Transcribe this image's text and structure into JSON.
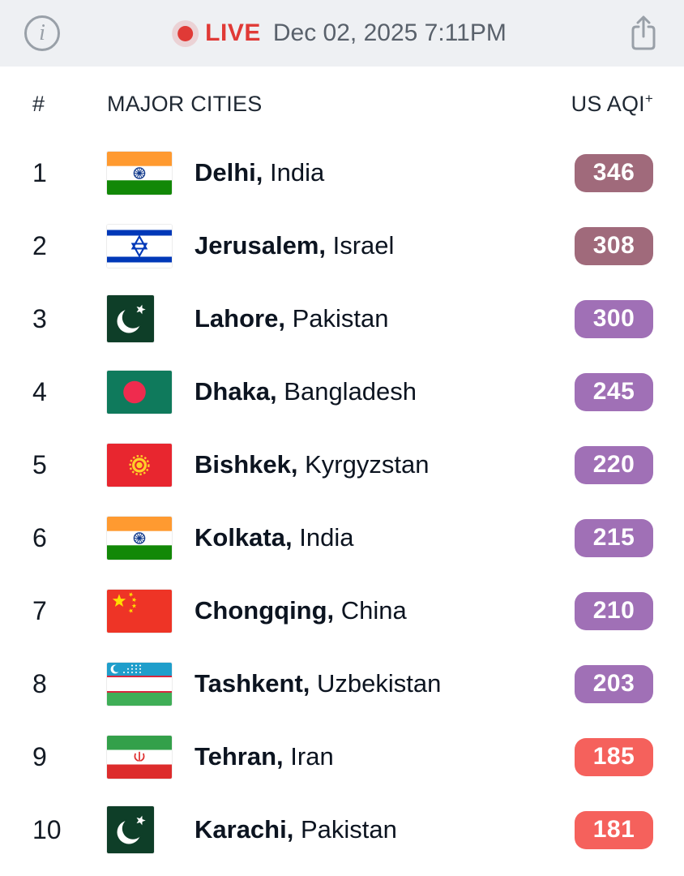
{
  "header_bar": {
    "info_glyph": "i",
    "live_label": "LIVE",
    "timestamp": "Dec 02, 2025 7:11PM",
    "live_color": "#e03a36",
    "bar_background": "#eef0f3"
  },
  "table": {
    "columns": {
      "rank": "#",
      "cities": "MAJOR CITIES",
      "aqi": "US AQI",
      "aqi_superscript": "+"
    },
    "rows": [
      {
        "rank": "1",
        "city": "Delhi",
        "country": "India",
        "flag": "india",
        "aqi": "346",
        "level": "hazardous"
      },
      {
        "rank": "2",
        "city": "Jerusalem",
        "country": "Israel",
        "flag": "israel",
        "aqi": "308",
        "level": "hazardous"
      },
      {
        "rank": "3",
        "city": "Lahore",
        "country": "Pakistan",
        "flag": "pakistan",
        "aqi": "300",
        "level": "very_unhealthy"
      },
      {
        "rank": "4",
        "city": "Dhaka",
        "country": "Bangladesh",
        "flag": "bangladesh",
        "aqi": "245",
        "level": "very_unhealthy"
      },
      {
        "rank": "5",
        "city": "Bishkek",
        "country": "Kyrgyzstan",
        "flag": "kyrgyzstan",
        "aqi": "220",
        "level": "very_unhealthy"
      },
      {
        "rank": "6",
        "city": "Kolkata",
        "country": "India",
        "flag": "india",
        "aqi": "215",
        "level": "very_unhealthy"
      },
      {
        "rank": "7",
        "city": "Chongqing",
        "country": "China",
        "flag": "china",
        "aqi": "210",
        "level": "very_unhealthy"
      },
      {
        "rank": "8",
        "city": "Tashkent",
        "country": "Uzbekistan",
        "flag": "uzbekistan",
        "aqi": "203",
        "level": "very_unhealthy"
      },
      {
        "rank": "9",
        "city": "Tehran",
        "country": "Iran",
        "flag": "iran",
        "aqi": "185",
        "level": "unhealthy"
      },
      {
        "rank": "10",
        "city": "Karachi",
        "country": "Pakistan",
        "flag": "pakistan",
        "aqi": "181",
        "level": "unhealthy"
      }
    ]
  },
  "aqi_colors": {
    "hazardous": "#a06a7b",
    "very_unhealthy": "#a070b6",
    "unhealthy": "#f5615c"
  }
}
